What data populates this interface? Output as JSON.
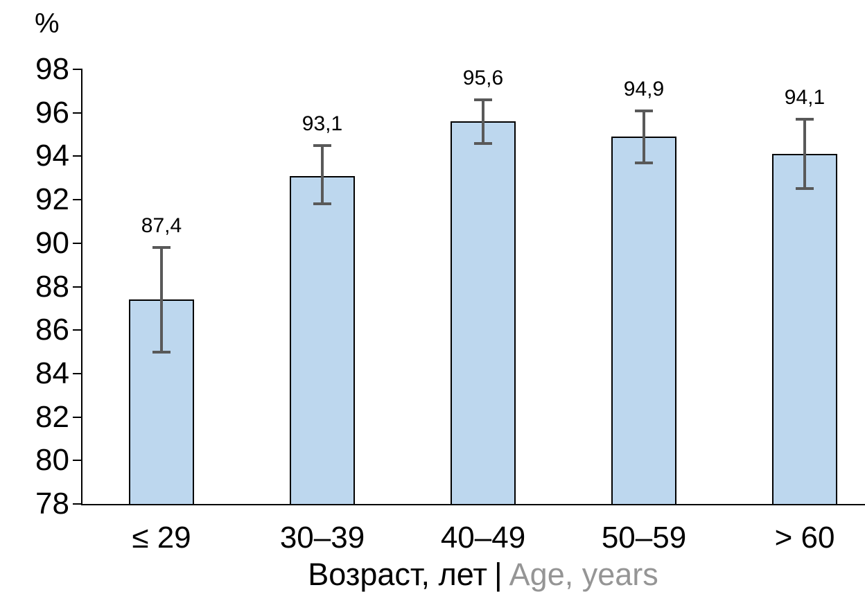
{
  "chart_data": {
    "type": "bar",
    "title": "",
    "ylabel": "%",
    "categories": [
      "≤ 29",
      "30–39",
      "40–49",
      "50–59",
      "> 60"
    ],
    "values": [
      87.4,
      93.1,
      95.6,
      94.9,
      94.1
    ],
    "value_labels": [
      "87,4",
      "93,1",
      "95,6",
      "94,9",
      "94,1"
    ],
    "error_bars": [
      {
        "low": 85.0,
        "high": 89.8
      },
      {
        "low": 91.8,
        "high": 94.5
      },
      {
        "low": 94.6,
        "high": 96.6
      },
      {
        "low": 93.7,
        "high": 96.1
      },
      {
        "low": 92.5,
        "high": 95.7
      }
    ],
    "ylim": [
      78,
      98
    ],
    "yticks": [
      78,
      80,
      82,
      84,
      86,
      88,
      90,
      92,
      94,
      96,
      98
    ],
    "xlabel_ru": "Возраст, лет",
    "xlabel_separator": "|",
    "xlabel_en": "Age, years",
    "grid": false,
    "legend": false,
    "colors": {
      "bar_fill": "#BDD7EE",
      "bar_border": "#000000",
      "error_bar": "#595959",
      "axis": "#000000",
      "text": "#000000",
      "xlabel_en_color": "#959595"
    }
  }
}
